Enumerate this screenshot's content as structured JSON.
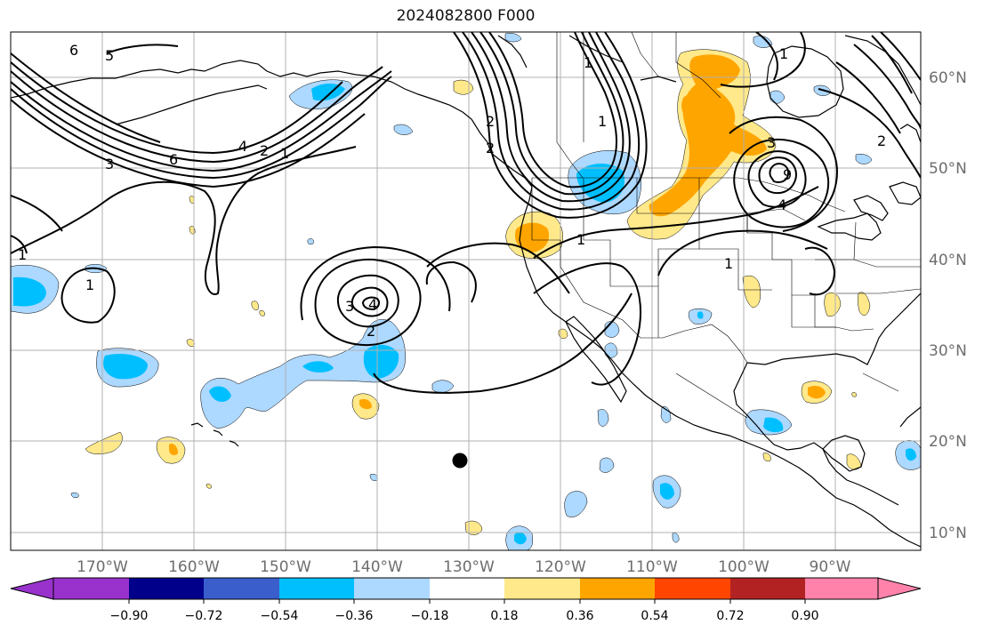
{
  "map": {
    "title": "2024082800 F000",
    "lon_labels": [
      "170°W",
      "160°W",
      "150°W",
      "140°W",
      "130°W",
      "120°W",
      "110°W",
      "100°W",
      "90°W"
    ],
    "lat_labels": [
      "60°N",
      "50°N",
      "40°N",
      "30°N",
      "20°N",
      "10°N"
    ],
    "contour_labels": [
      "6",
      "5",
      "3",
      "6",
      "4",
      "2",
      "1",
      "1",
      "1",
      "1",
      "2",
      "4",
      "3",
      "2",
      "1",
      "1",
      "1",
      "1",
      "3",
      "2",
      "9",
      "4",
      "2"
    ],
    "colors": {
      "land_outline": "#000000",
      "gridline": "#b0b0b0",
      "light_blue": "#add8ff",
      "blue": "#00bfff",
      "yellow": "#ffe98a",
      "orange": "#ffa500",
      "marker": "#000000"
    }
  },
  "colorbar": {
    "tick_labels": [
      "−0.90",
      "−0.72",
      "−0.54",
      "−0.36",
      "−0.18",
      "0.18",
      "0.36",
      "0.54",
      "0.72",
      "0.90"
    ],
    "colors": [
      "#9932cc",
      "#00008b",
      "#3a5fcd",
      "#00bfff",
      "#add8ff",
      "#ffffff",
      "#ffe98a",
      "#ffa500",
      "#ff4500",
      "#b22222",
      "#ff82ab"
    ]
  }
}
